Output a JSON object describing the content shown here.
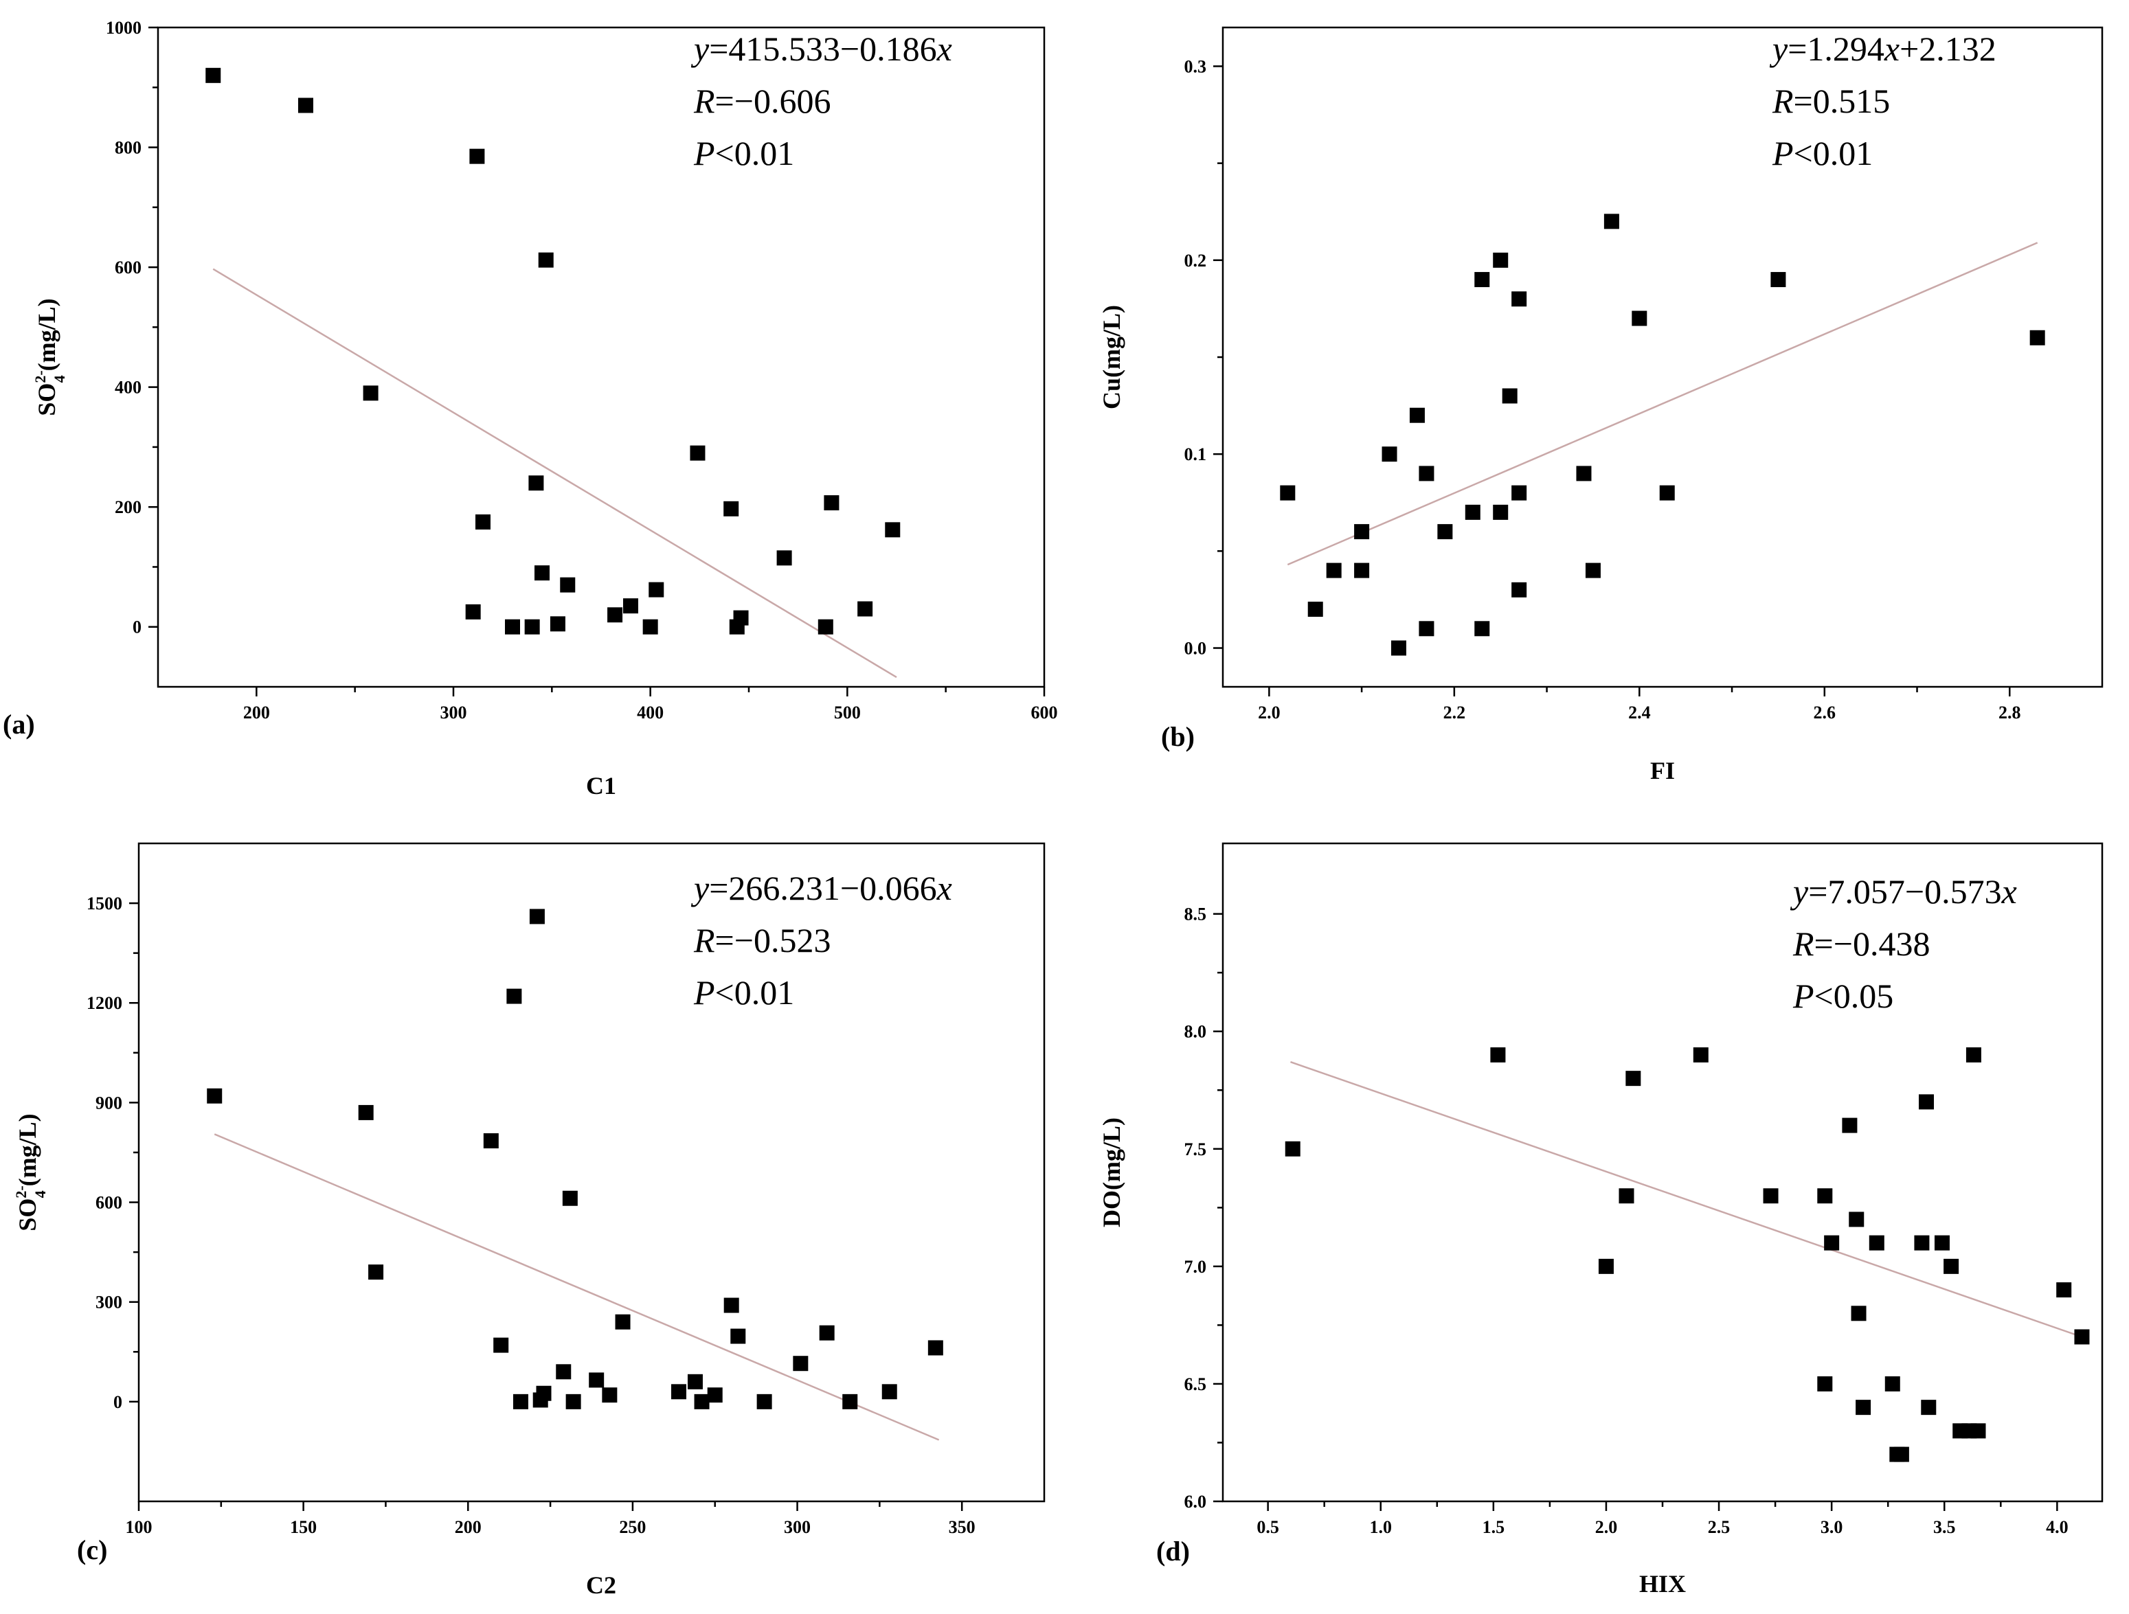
{
  "chart_data": [
    {
      "id": "a",
      "type": "scatter",
      "panel_label": "(a)",
      "xlabel": "C1",
      "ylabel_main": "SO",
      "ylabel_sub": "4",
      "ylabel_sup": "2-",
      "ylabel_unit": "(mg/L)",
      "xlim": [
        150,
        600
      ],
      "ylim": [
        -100,
        1000
      ],
      "xticks": [
        200,
        300,
        400,
        500,
        600
      ],
      "yticks": [
        0,
        200,
        400,
        600,
        800,
        1000
      ],
      "xtick_labels": [
        "200",
        "300",
        "400",
        "500",
        "600"
      ],
      "ytick_labels": [
        "0",
        "200",
        "400",
        "600",
        "800",
        "1000"
      ],
      "equation": {
        "line1": {
          "var": "y",
          "rest": "=415.533−0.186",
          "var2": "x"
        },
        "line2": {
          "var": "R",
          "rest": "=−0.606"
        },
        "line3": {
          "var": "P",
          "rest": "<0.01"
        }
      },
      "fit_line": {
        "x": [
          178,
          525
        ],
        "y": [
          597,
          -84
        ]
      },
      "points": [
        [
          178,
          920
        ],
        [
          225,
          870
        ],
        [
          258,
          390
        ],
        [
          312,
          785
        ],
        [
          347,
          612
        ],
        [
          315,
          175
        ],
        [
          342,
          240
        ],
        [
          345,
          90
        ],
        [
          358,
          70
        ],
        [
          310,
          25
        ],
        [
          330,
          0
        ],
        [
          340,
          0
        ],
        [
          353,
          5
        ],
        [
          382,
          20
        ],
        [
          390,
          35
        ],
        [
          400,
          0
        ],
        [
          403,
          62
        ],
        [
          424,
          290
        ],
        [
          441,
          197
        ],
        [
          444,
          0
        ],
        [
          446,
          15
        ],
        [
          468,
          115
        ],
        [
          489,
          0
        ],
        [
          492,
          207
        ],
        [
          509,
          30
        ],
        [
          523,
          162
        ]
      ]
    },
    {
      "id": "b",
      "type": "scatter",
      "panel_label": "(b)",
      "xlabel": "FI",
      "ylabel_main": "Cu(mg/L)",
      "xlim": [
        1.95,
        2.9
      ],
      "ylim": [
        -0.02,
        0.32
      ],
      "xticks": [
        2.0,
        2.2,
        2.4,
        2.6,
        2.8
      ],
      "yticks": [
        0.0,
        0.1,
        0.2,
        0.3
      ],
      "xtick_labels": [
        "2.0",
        "2.2",
        "2.4",
        "2.6",
        "2.8"
      ],
      "ytick_labels": [
        "0.0",
        "0.1",
        "0.2",
        "0.3"
      ],
      "equation": {
        "line1": {
          "var": "y",
          "rest": "=1.294",
          "var2": "x",
          "rest2": "+2.132"
        },
        "line2": {
          "var": "R",
          "rest": "=0.515"
        },
        "line3": {
          "var": "P",
          "rest": "<0.01"
        }
      },
      "fit_line": {
        "x": [
          2.02,
          2.83
        ],
        "y": [
          0.043,
          0.209
        ]
      },
      "points": [
        [
          2.02,
          0.08
        ],
        [
          2.05,
          0.02
        ],
        [
          2.07,
          0.04
        ],
        [
          2.1,
          0.06
        ],
        [
          2.1,
          0.04
        ],
        [
          2.13,
          0.1
        ],
        [
          2.14,
          0.0
        ],
        [
          2.16,
          0.12
        ],
        [
          2.17,
          0.09
        ],
        [
          2.17,
          0.01
        ],
        [
          2.19,
          0.06
        ],
        [
          2.22,
          0.07
        ],
        [
          2.23,
          0.19
        ],
        [
          2.23,
          0.01
        ],
        [
          2.25,
          0.2
        ],
        [
          2.25,
          0.07
        ],
        [
          2.26,
          0.13
        ],
        [
          2.27,
          0.18
        ],
        [
          2.27,
          0.08
        ],
        [
          2.27,
          0.03
        ],
        [
          2.34,
          0.09
        ],
        [
          2.35,
          0.04
        ],
        [
          2.37,
          0.22
        ],
        [
          2.4,
          0.17
        ],
        [
          2.43,
          0.08
        ],
        [
          2.55,
          0.19
        ],
        [
          2.83,
          0.16
        ]
      ]
    },
    {
      "id": "c",
      "type": "scatter",
      "panel_label": "(c)",
      "xlabel": "C2",
      "ylabel_main": "SO",
      "ylabel_sub": "4",
      "ylabel_sup": "2-",
      "ylabel_unit": "(mg/L)",
      "xlim": [
        100,
        375
      ],
      "ylim": [
        -300,
        1680
      ],
      "xticks": [
        100,
        150,
        200,
        250,
        300,
        350
      ],
      "yticks": [
        0,
        300,
        600,
        900,
        1200,
        1500
      ],
      "xtick_labels": [
        "100",
        "150",
        "200",
        "250",
        "300",
        "350"
      ],
      "ytick_labels": [
        "0",
        "300",
        "600",
        "900",
        "1200",
        "1500"
      ],
      "equation": {
        "line1": {
          "var": "y",
          "rest": "=266.231−0.066",
          "var2": "x"
        },
        "line2": {
          "var": "R",
          "rest": "=−0.523"
        },
        "line3": {
          "var": "P",
          "rest": "<0.01"
        }
      },
      "fit_line": {
        "x": [
          123,
          343
        ],
        "y": [
          805,
          -115
        ]
      },
      "points": [
        [
          123,
          920
        ],
        [
          169,
          870
        ],
        [
          172,
          390
        ],
        [
          207,
          785
        ],
        [
          210,
          170
        ],
        [
          214,
          1220
        ],
        [
          216,
          0
        ],
        [
          221,
          1460
        ],
        [
          222,
          5
        ],
        [
          223,
          25
        ],
        [
          229,
          90
        ],
        [
          231,
          612
        ],
        [
          232,
          0
        ],
        [
          239,
          65
        ],
        [
          243,
          20
        ],
        [
          247,
          240
        ],
        [
          264,
          30
        ],
        [
          269,
          60
        ],
        [
          271,
          0
        ],
        [
          275,
          20
        ],
        [
          280,
          290
        ],
        [
          282,
          197
        ],
        [
          290,
          0
        ],
        [
          301,
          115
        ],
        [
          309,
          207
        ],
        [
          316,
          0
        ],
        [
          328,
          30
        ],
        [
          342,
          162
        ]
      ]
    },
    {
      "id": "d",
      "type": "scatter",
      "panel_label": "(d)",
      "xlabel": "HIX",
      "ylabel_main": "DO(mg/L)",
      "xlim": [
        0.3,
        4.2
      ],
      "ylim": [
        6.0,
        8.8
      ],
      "xticks": [
        0.5,
        1.0,
        1.5,
        2.0,
        2.5,
        3.0,
        3.5,
        4.0
      ],
      "yticks": [
        6.0,
        6.5,
        7.0,
        7.5,
        8.0,
        8.5
      ],
      "xtick_labels": [
        "0.5",
        "1.0",
        "1.5",
        "2.0",
        "2.5",
        "3.0",
        "3.5",
        "4.0"
      ],
      "ytick_labels": [
        "6.0",
        "6.5",
        "7.0",
        "7.5",
        "8.0",
        "8.5"
      ],
      "equation": {
        "line1": {
          "var": "y",
          "rest": "=7.057−0.573",
          "var2": "x"
        },
        "line2": {
          "var": "R",
          "rest": "=−0.438"
        },
        "line3": {
          "var": "P",
          "rest": "<0.05"
        }
      },
      "fit_line": {
        "x": [
          0.6,
          4.11
        ],
        "y": [
          7.87,
          6.7
        ]
      },
      "points": [
        [
          0.61,
          7.5
        ],
        [
          1.52,
          7.9
        ],
        [
          2.0,
          7.0
        ],
        [
          2.09,
          7.3
        ],
        [
          2.12,
          7.8
        ],
        [
          2.42,
          7.9
        ],
        [
          2.73,
          7.3
        ],
        [
          2.97,
          7.3
        ],
        [
          2.97,
          6.5
        ],
        [
          3.0,
          7.1
        ],
        [
          3.08,
          7.6
        ],
        [
          3.11,
          7.2
        ],
        [
          3.12,
          6.8
        ],
        [
          3.14,
          6.4
        ],
        [
          3.2,
          7.1
        ],
        [
          3.27,
          6.5
        ],
        [
          3.29,
          6.2
        ],
        [
          3.31,
          6.2
        ],
        [
          3.4,
          7.1
        ],
        [
          3.42,
          7.7
        ],
        [
          3.43,
          6.4
        ],
        [
          3.49,
          7.1
        ],
        [
          3.53,
          7.0
        ],
        [
          3.57,
          6.3
        ],
        [
          3.61,
          6.3
        ],
        [
          3.63,
          7.9
        ],
        [
          3.65,
          6.3
        ],
        [
          4.03,
          6.9
        ],
        [
          4.11,
          6.7
        ]
      ]
    }
  ]
}
